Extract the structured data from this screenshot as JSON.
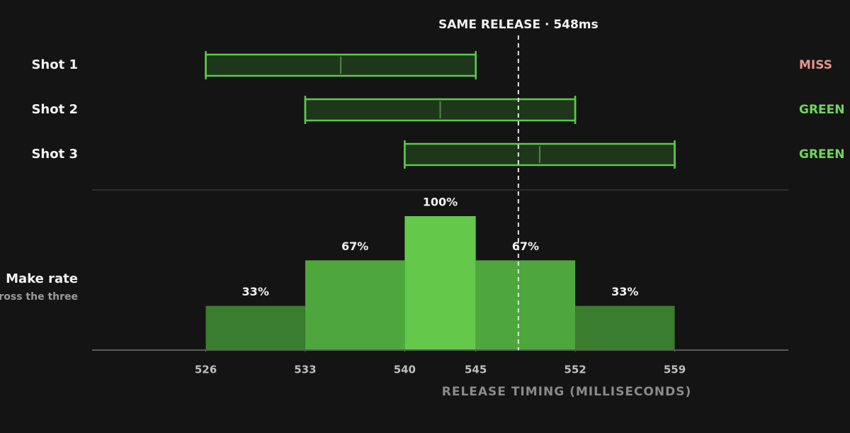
{
  "chart_data": [
    {
      "type": "range",
      "categories": [
        "Shot 1",
        "Shot 2",
        "Shot 3"
      ],
      "starts": [
        526,
        533,
        540
      ],
      "ends": [
        545,
        552,
        559
      ],
      "centers": [
        535.5,
        542.5,
        549.5
      ],
      "results": [
        "MISS",
        "GREEN",
        "GREEN"
      ],
      "result_colors": [
        "#e79191",
        "#6fd65a",
        "#6fd65a"
      ],
      "color": "#5cc94a",
      "annotation": "SAME RELEASE · 548ms",
      "release": 548,
      "xlim": [
        518,
        567
      ]
    },
    {
      "type": "histogram",
      "label": "Make rate",
      "sublabel": "across the three",
      "bins": [
        526,
        533,
        540,
        545,
        552,
        559
      ],
      "values": [
        33,
        67,
        100,
        67,
        33
      ],
      "value_labels": [
        "33%",
        "67%",
        "100%",
        "67%",
        "33%"
      ],
      "colors": [
        "#3b7d2e",
        "#4ea73c",
        "#64c84a",
        "#4ea73c",
        "#3b7d2e"
      ],
      "ylim": [
        0,
        100
      ],
      "xlim": [
        518,
        567
      ],
      "xticks": [
        526,
        533,
        540,
        545,
        552,
        559
      ],
      "xlabel": "RELEASE TIMING (MILLISECONDS)"
    }
  ]
}
